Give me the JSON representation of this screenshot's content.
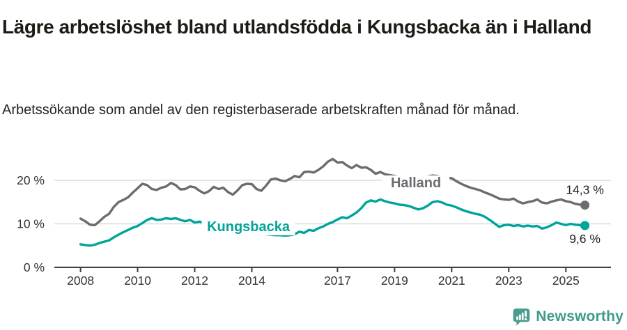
{
  "header": {
    "title": "Lägre arbetslöshet bland utlandsfödda i Kungsbacka än i Halland",
    "subtitle": "Arbetssökande som andel av den registerbaserade arbetskraften månad för månad."
  },
  "footer": {
    "brand": "Newsworthy",
    "logo_icon": "bar-chart-speech-bubble-icon",
    "brand_color": "#3f9a8b",
    "logo_color": "#4a9c8e"
  },
  "colors": {
    "background": "#ffffff",
    "grid": "#dcdcdc",
    "axis": "#3f3f3f",
    "tick_text": "#333333",
    "value_label": "#222222"
  },
  "chart_data": {
    "type": "line",
    "title": "Lägre arbetslöshet bland utlandsfödda i Kungsbacka än i Halland",
    "subtitle": "Arbetssökande som andel av den registerbaserade arbetskraften månad för månad.",
    "unit": "%",
    "grid": "horizontal",
    "legend": "inline-series-labels",
    "x": {
      "start_year": 2008,
      "points_per_year": 6,
      "end": "2025",
      "tick_years": [
        2008,
        2010,
        2012,
        2014,
        2017,
        2019,
        2021,
        2023,
        2025
      ],
      "tick_labels": [
        "2008",
        "2010",
        "2012",
        "2014",
        "2017",
        "2019",
        "2021",
        "2023",
        "2025"
      ]
    },
    "y": {
      "lim": [
        0,
        27
      ],
      "ticks": [
        0,
        10,
        20
      ],
      "tick_labels": [
        "0 %",
        "10 %",
        "20 %"
      ]
    },
    "series": [
      {
        "name": "Halland",
        "color": "#6b6b71",
        "end_value": 14.3,
        "end_label": "14,3 %",
        "end_label_side": "above",
        "name_label": {
          "t": 2019.75,
          "v": 18.4
        },
        "values": [
          11.2,
          10.6,
          9.8,
          9.7,
          10.6,
          11.6,
          12.3,
          13.9,
          15.0,
          15.5,
          16.1,
          17.2,
          18.2,
          19.2,
          18.9,
          18.0,
          17.8,
          18.3,
          18.6,
          19.4,
          18.9,
          17.9,
          18.0,
          18.6,
          18.4,
          17.6,
          17.0,
          17.5,
          18.5,
          18.0,
          18.3,
          17.3,
          16.7,
          17.7,
          18.9,
          19.2,
          19.1,
          18.0,
          17.6,
          18.8,
          20.2,
          20.4,
          20.0,
          19.8,
          20.3,
          21.0,
          20.7,
          21.9,
          22.0,
          21.8,
          22.4,
          23.2,
          24.3,
          24.9,
          24.1,
          24.2,
          23.4,
          22.8,
          23.5,
          22.9,
          23.0,
          22.4,
          21.5,
          21.9,
          21.4,
          21.2,
          21.0,
          20.8,
          20.6,
          20.5,
          20.4,
          20.5,
          20.6,
          20.9,
          21.1,
          21.0,
          20.7,
          20.6,
          20.5,
          19.8,
          19.2,
          18.7,
          18.3,
          18.0,
          17.7,
          17.2,
          16.8,
          16.3,
          15.8,
          15.6,
          15.5,
          15.8,
          15.1,
          14.7,
          15.0,
          15.2,
          15.6,
          14.9,
          14.7,
          15.1,
          15.4,
          15.6,
          15.2,
          15.0,
          14.6,
          14.4,
          14.3
        ]
      },
      {
        "name": "Kungsbacka",
        "color": "#00a49a",
        "end_value": 9.6,
        "end_label": "9,6 %",
        "end_label_side": "below",
        "name_label": {
          "t": 2013.88,
          "v": 8.32
        },
        "values": [
          5.3,
          5.1,
          5.0,
          5.2,
          5.6,
          5.9,
          6.2,
          6.9,
          7.5,
          8.1,
          8.6,
          9.1,
          9.5,
          10.2,
          10.9,
          11.3,
          10.9,
          11.0,
          11.3,
          11.1,
          11.3,
          10.9,
          10.6,
          10.9,
          10.3,
          10.5,
          10.2,
          9.9,
          9.7,
          9.5,
          9.3,
          9.0,
          8.8,
          8.6,
          8.4,
          8.2,
          8.0,
          7.9,
          7.7,
          7.6,
          7.5,
          7.4,
          7.4,
          7.3,
          7.4,
          7.6,
          8.2,
          7.9,
          8.6,
          8.4,
          9.0,
          9.4,
          10.0,
          10.4,
          11.0,
          11.5,
          11.3,
          11.9,
          12.6,
          13.6,
          14.9,
          15.4,
          15.1,
          15.6,
          15.2,
          14.9,
          14.7,
          14.4,
          14.3,
          14.1,
          13.7,
          13.3,
          13.6,
          14.2,
          15.0,
          15.2,
          14.9,
          14.4,
          14.2,
          13.8,
          13.3,
          12.9,
          12.6,
          12.3,
          12.1,
          11.6,
          10.9,
          10.1,
          9.3,
          9.7,
          9.8,
          9.5,
          9.7,
          9.4,
          9.6,
          9.4,
          9.5,
          8.9,
          9.2,
          9.7,
          10.3,
          10.0,
          9.7,
          10.0,
          9.8,
          9.7,
          9.6
        ]
      }
    ]
  }
}
